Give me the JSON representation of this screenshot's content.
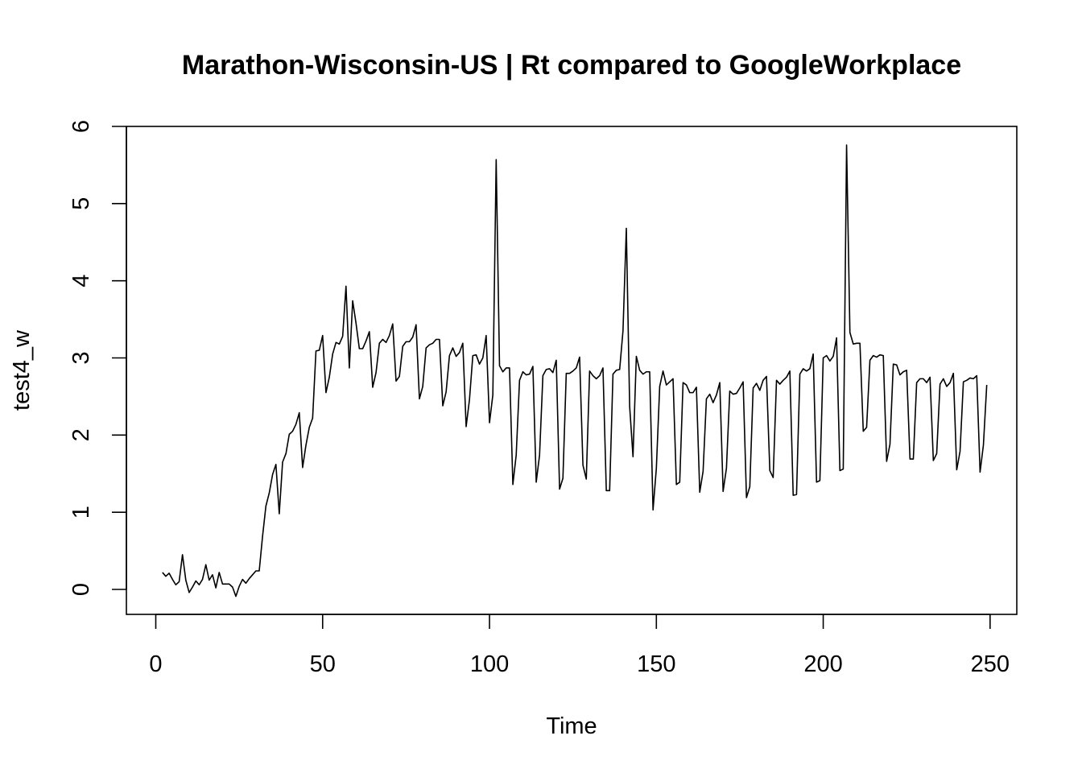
{
  "chart_data": {
    "type": "line",
    "title": "Marathon-Wisconsin-US | Rt compared to GoogleWorkplace",
    "xlabel": "Time",
    "ylabel": "test4_w",
    "xlim": [
      1,
      248
    ],
    "ylim": [
      -0.1,
      5.8
    ],
    "x_ticks": [
      0,
      50,
      100,
      150,
      200,
      250
    ],
    "y_ticks": [
      0,
      1,
      2,
      3,
      4,
      5,
      6
    ],
    "grid": false,
    "x_start": 2,
    "y": [
      0.22,
      0.17,
      0.21,
      0.13,
      0.06,
      0.1,
      0.45,
      0.12,
      -0.04,
      0.03,
      0.11,
      0.06,
      0.13,
      0.32,
      0.12,
      0.19,
      0.02,
      0.22,
      0.07,
      0.07,
      0.07,
      0.03,
      -0.09,
      0.04,
      0.13,
      0.08,
      0.14,
      0.19,
      0.24,
      0.24,
      0.69,
      1.08,
      1.25,
      1.49,
      1.62,
      0.98,
      1.65,
      1.76,
      2.01,
      2.05,
      2.14,
      2.29,
      1.58,
      1.87,
      2.1,
      2.22,
      3.09,
      3.1,
      3.29,
      2.55,
      2.75,
      3.05,
      3.2,
      3.18,
      3.28,
      3.93,
      2.87,
      3.74,
      3.45,
      3.12,
      3.12,
      3.22,
      3.34,
      2.62,
      2.81,
      3.19,
      3.24,
      3.2,
      3.29,
      3.44,
      2.7,
      2.76,
      3.15,
      3.21,
      3.21,
      3.27,
      3.43,
      2.47,
      2.63,
      3.13,
      3.17,
      3.19,
      3.24,
      3.24,
      2.38,
      2.56,
      3.03,
      3.13,
      3.02,
      3.07,
      3.19,
      2.11,
      2.46,
      3.03,
      3.04,
      2.92,
      3.0,
      3.29,
      2.16,
      2.52,
      5.57,
      2.9,
      2.82,
      2.87,
      2.87,
      1.36,
      1.74,
      2.71,
      2.82,
      2.78,
      2.79,
      2.89,
      1.39,
      1.74,
      2.77,
      2.85,
      2.86,
      2.81,
      2.97,
      1.3,
      1.44,
      2.8,
      2.8,
      2.83,
      2.87,
      3.01,
      1.61,
      1.43,
      2.83,
      2.77,
      2.73,
      2.77,
      2.87,
      1.28,
      1.28,
      2.79,
      2.84,
      2.85,
      3.35,
      4.68,
      2.37,
      1.72,
      3.02,
      2.84,
      2.79,
      2.82,
      2.82,
      1.03,
      1.57,
      2.63,
      2.83,
      2.65,
      2.69,
      2.73,
      1.36,
      1.39,
      2.68,
      2.65,
      2.55,
      2.55,
      2.62,
      1.26,
      1.53,
      2.47,
      2.53,
      2.42,
      2.52,
      2.68,
      1.27,
      1.57,
      2.57,
      2.53,
      2.54,
      2.61,
      2.69,
      1.19,
      1.33,
      2.61,
      2.67,
      2.58,
      2.71,
      2.76,
      1.54,
      1.45,
      2.71,
      2.66,
      2.71,
      2.75,
      2.83,
      1.22,
      1.23,
      2.79,
      2.86,
      2.83,
      2.86,
      3.05,
      1.39,
      1.41,
      3.0,
      3.03,
      2.96,
      3.02,
      3.26,
      1.54,
      1.56,
      5.76,
      3.33,
      3.18,
      3.19,
      3.19,
      2.05,
      2.1,
      2.97,
      3.03,
      3.01,
      3.04,
      3.03,
      1.66,
      1.88,
      2.92,
      2.91,
      2.78,
      2.82,
      2.84,
      1.69,
      1.69,
      2.68,
      2.73,
      2.73,
      2.68,
      2.75,
      1.67,
      1.76,
      2.66,
      2.73,
      2.63,
      2.68,
      2.8,
      1.55,
      1.79,
      2.69,
      2.71,
      2.74,
      2.73,
      2.77,
      1.52,
      1.87,
      2.65
    ]
  }
}
